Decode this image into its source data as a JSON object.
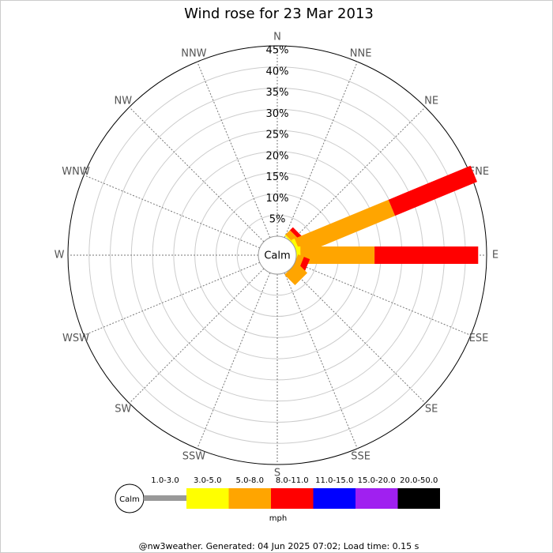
{
  "chart_data": {
    "type": "windrose",
    "title": "Wind rose for 23 Mar 2013",
    "categories": [
      "N",
      "NNE",
      "NE",
      "ENE",
      "E",
      "ESE",
      "SE",
      "SSE",
      "S",
      "SSW",
      "SW",
      "WSW",
      "W",
      "WNW",
      "NW",
      "NNW"
    ],
    "calm_label": "Calm",
    "ylim": [
      0,
      45
    ],
    "yticks": [
      {
        "value": 5,
        "label": "5%"
      },
      {
        "value": 10,
        "label": "10%"
      },
      {
        "value": 15,
        "label": "15%"
      },
      {
        "value": 20,
        "label": "20%"
      },
      {
        "value": 25,
        "label": "25%"
      },
      {
        "value": 30,
        "label": "30%"
      },
      {
        "value": 35,
        "label": "35%"
      },
      {
        "value": 40,
        "label": "40%"
      },
      {
        "value": 45,
        "label": "45%"
      }
    ],
    "series": [
      {
        "name": "1.0-3.0",
        "color": "#999999",
        "values": [
          0,
          0,
          0,
          0,
          0,
          0,
          0,
          0,
          0,
          0,
          0,
          0,
          0,
          0,
          0,
          0
        ]
      },
      {
        "name": "3.0-5.0",
        "color": "#ffff00",
        "values": [
          0,
          0,
          0.3,
          0.8,
          1,
          0,
          0,
          0,
          0,
          0,
          0,
          0,
          0,
          0,
          0,
          0
        ]
      },
      {
        "name": "5.0-8.0",
        "color": "#ffa500",
        "values": [
          0,
          0,
          1.5,
          24,
          17.5,
          1.5,
          3.5,
          0,
          0,
          0,
          0,
          0,
          0,
          0,
          0,
          0
        ]
      },
      {
        "name": "8.0-11.0",
        "color": "#ff0000",
        "values": [
          0,
          0,
          1,
          21,
          24.5,
          1.5,
          0,
          0,
          0,
          0,
          0,
          0,
          0,
          0,
          0,
          0
        ]
      },
      {
        "name": "11.0-15.0",
        "color": "#0000ff",
        "values": [
          0,
          0,
          0,
          0,
          0,
          0,
          0,
          0,
          0,
          0,
          0,
          0,
          0,
          0,
          0,
          0
        ]
      },
      {
        "name": "15.0-20.0",
        "color": "#a020f0",
        "values": [
          0,
          0,
          0,
          0,
          0,
          0,
          0,
          0,
          0,
          0,
          0,
          0,
          0,
          0,
          0,
          0
        ]
      },
      {
        "name": "20.0-50.0",
        "color": "#000000",
        "values": [
          0,
          0,
          0,
          0,
          0,
          0,
          0,
          0,
          0,
          0,
          0,
          0,
          0,
          0,
          0,
          0
        ]
      }
    ],
    "legend_unit": "mph",
    "footer": "@nw3weather. Generated: 04 Jun 2025 07:02; Load time: 0.15 s"
  }
}
